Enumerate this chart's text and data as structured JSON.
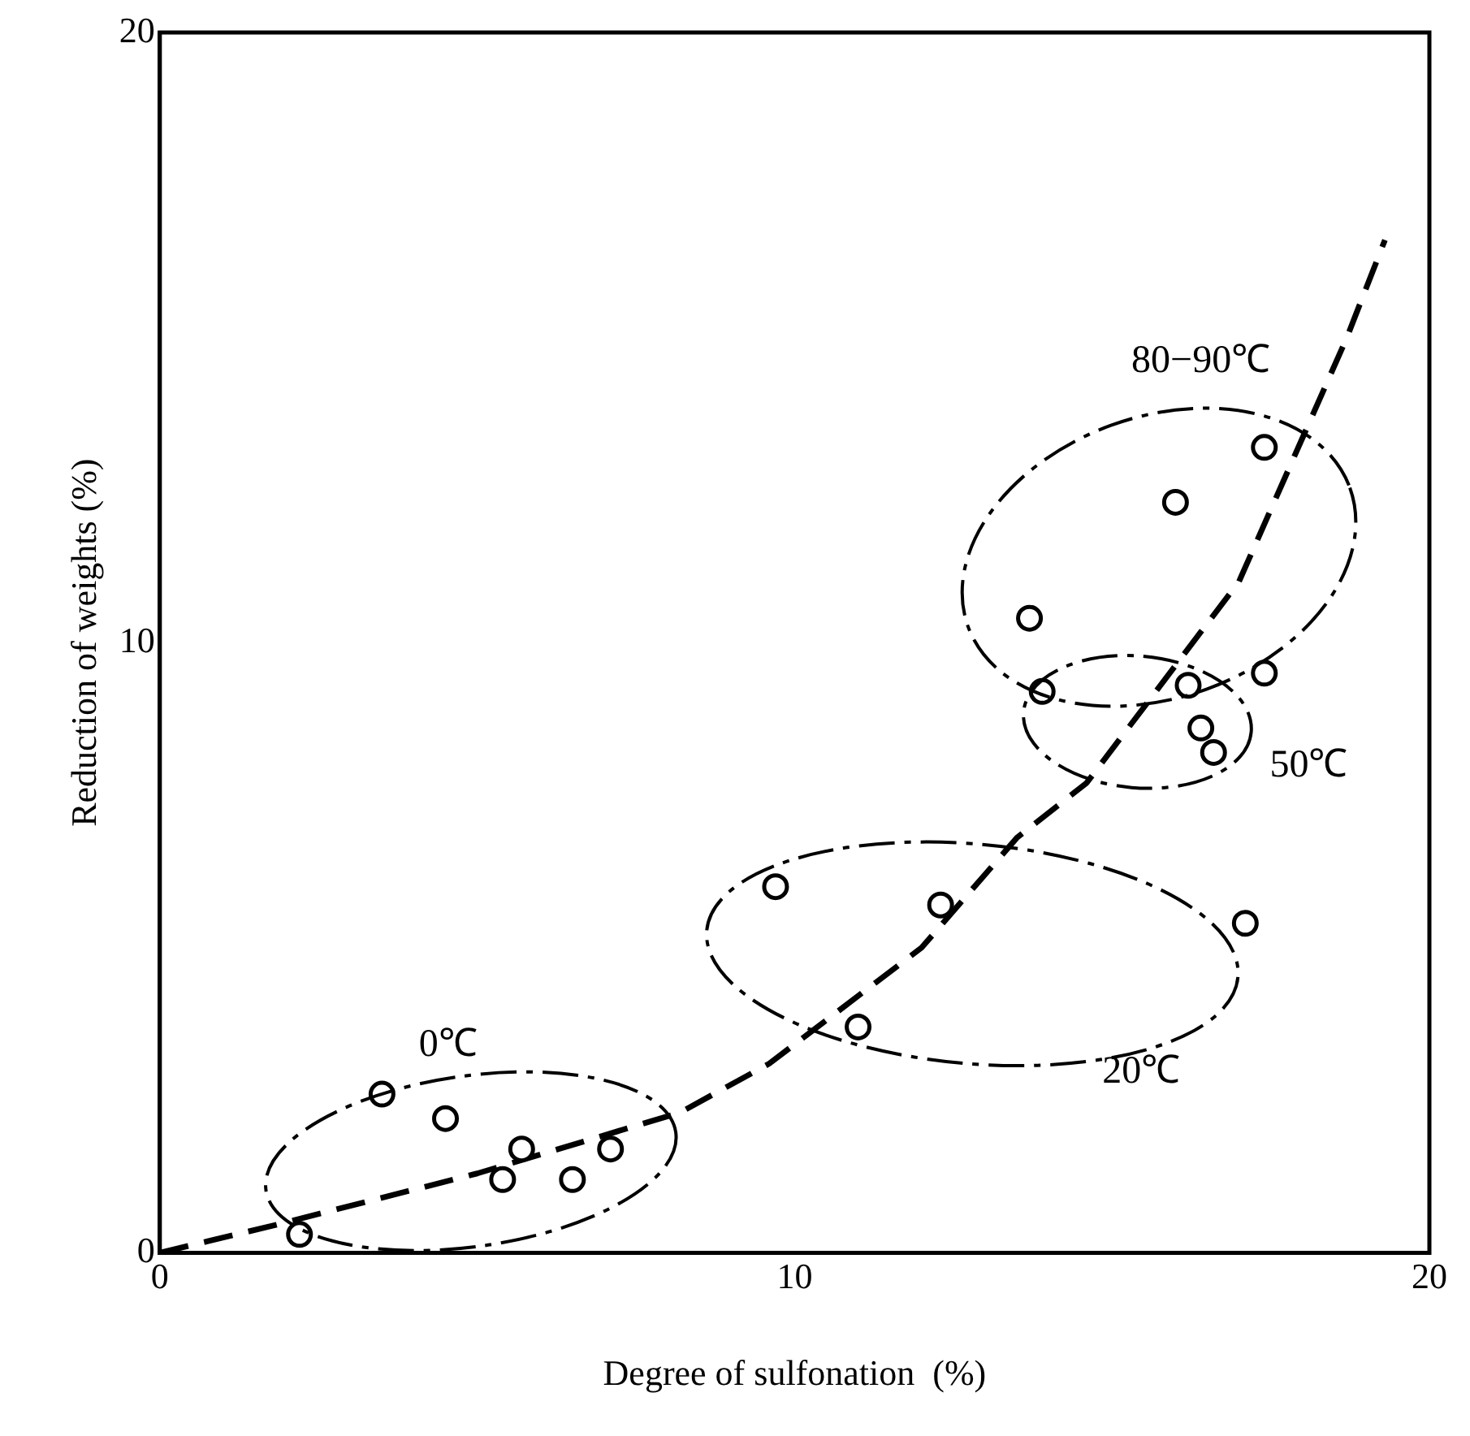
{
  "chart_data": {
    "type": "scatter",
    "xlabel": "Degree of sulfonation  (%)",
    "ylabel": "Reduction of weights (%)",
    "xlim": [
      0,
      20
    ],
    "ylim": [
      0,
      20
    ],
    "xticks": [
      0,
      10,
      20
    ],
    "yticks": [
      0,
      10,
      20
    ],
    "grid": false,
    "legend": false,
    "marker": "circle",
    "series": [
      {
        "color": "#000000",
        "x": [
          2.2,
          3.5,
          4.5,
          5.7,
          5.4,
          6.5,
          7.1
        ],
        "values": [
          0.3,
          2.6,
          2.2,
          1.7,
          1.2,
          1.2,
          1.7
        ]
      },
      {
        "color": "#000000",
        "x": [
          9.7,
          12.3,
          17.1,
          11.0
        ],
        "values": [
          6.0,
          5.7,
          5.4,
          3.7
        ]
      },
      {
        "color": "#000000",
        "x": [
          13.9,
          16.2,
          16.4,
          16.6
        ],
        "values": [
          9.2,
          9.3,
          8.6,
          8.2
        ]
      },
      {
        "color": "#000000",
        "x": [
          13.7,
          16.0,
          17.4,
          17.4
        ],
        "values": [
          10.4,
          12.3,
          13.2,
          9.5
        ]
      },
      {
        "type": "line",
        "color": "#000000",
        "line_style": "dashed",
        "marker": "none",
        "x": [
          0,
          1.8,
          5,
          8.2,
          9.6,
          12,
          13.5,
          14.6,
          17,
          18.7,
          19.3
        ],
        "values": [
          0,
          0.45,
          1.3,
          2.3,
          3.1,
          5.0,
          6.8,
          7.7,
          11,
          15,
          16.6
        ]
      }
    ],
    "annotations": [
      "0℃",
      "20℃",
      "50℃",
      "80−90℃"
    ]
  }
}
